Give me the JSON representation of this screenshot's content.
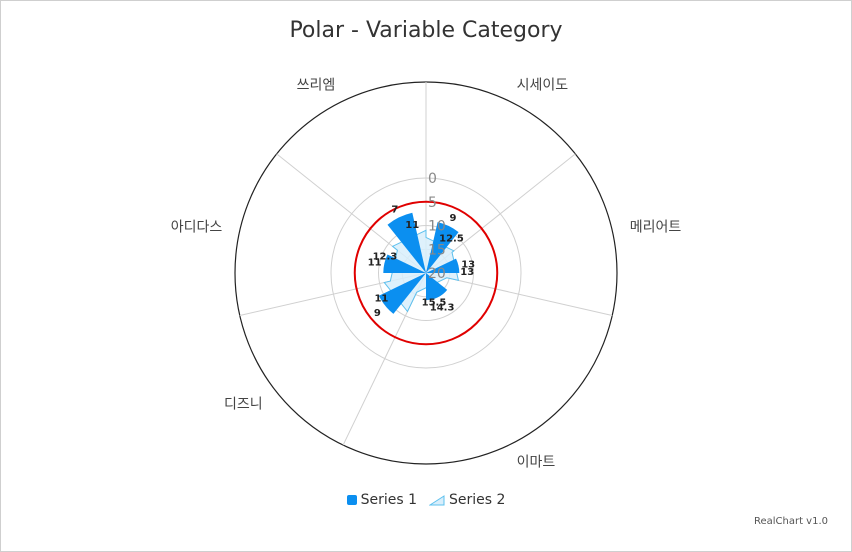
{
  "colors": {
    "series1": "#0b8ff0",
    "series2_fill": "#d8eefb",
    "series2_stroke": "#5cc0ee",
    "guide": "#e00000",
    "outer": "#222222",
    "grid": "#d0d0d0"
  },
  "chart_data": {
    "type": "polar",
    "title": "Polar - Variable Category",
    "categories": [
      "시세이도",
      "메리어트",
      "이마트",
      "디즈니",
      "아디다스",
      "쓰리엠"
    ],
    "category_widths": [
      1,
      1,
      2,
      1,
      1,
      1
    ],
    "series": [
      {
        "name": "Series 1",
        "kind": "bar",
        "values": [
          9,
          13,
          14.3,
          9,
          11,
          7
        ]
      },
      {
        "name": "Series 2",
        "kind": "area",
        "values": [
          12.5,
          13,
          15.5,
          11,
          12.3,
          11
        ]
      }
    ],
    "radial_axis": {
      "reversed": true,
      "min": 0,
      "max": 20,
      "ticks": [
        "0",
        "5",
        "10",
        "15",
        "20"
      ]
    },
    "guide_value": 5
  },
  "legend": {
    "items": [
      "Series 1",
      "Series 2"
    ]
  },
  "credit": "RealChart v1.0"
}
